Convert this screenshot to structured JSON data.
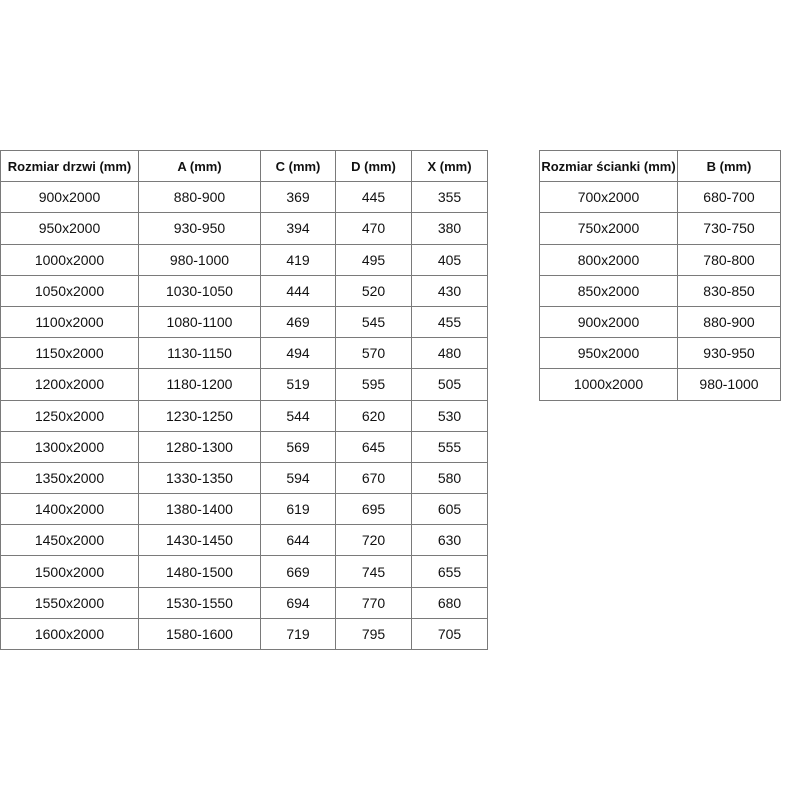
{
  "door_table": {
    "headers": [
      "Rozmiar drzwi (mm)",
      "A (mm)",
      "C (mm)",
      "D (mm)",
      "X (mm)"
    ],
    "rows": [
      [
        "900x2000",
        "880-900",
        "369",
        "445",
        "355"
      ],
      [
        "950x2000",
        "930-950",
        "394",
        "470",
        "380"
      ],
      [
        "1000x2000",
        "980-1000",
        "419",
        "495",
        "405"
      ],
      [
        "1050x2000",
        "1030-1050",
        "444",
        "520",
        "430"
      ],
      [
        "1100x2000",
        "1080-1100",
        "469",
        "545",
        "455"
      ],
      [
        "1150x2000",
        "1130-1150",
        "494",
        "570",
        "480"
      ],
      [
        "1200x2000",
        "1180-1200",
        "519",
        "595",
        "505"
      ],
      [
        "1250x2000",
        "1230-1250",
        "544",
        "620",
        "530"
      ],
      [
        "1300x2000",
        "1280-1300",
        "569",
        "645",
        "555"
      ],
      [
        "1350x2000",
        "1330-1350",
        "594",
        "670",
        "580"
      ],
      [
        "1400x2000",
        "1380-1400",
        "619",
        "695",
        "605"
      ],
      [
        "1450x2000",
        "1430-1450",
        "644",
        "720",
        "630"
      ],
      [
        "1500x2000",
        "1480-1500",
        "669",
        "745",
        "655"
      ],
      [
        "1550x2000",
        "1530-1550",
        "694",
        "770",
        "680"
      ],
      [
        "1600x2000",
        "1580-1600",
        "719",
        "795",
        "705"
      ]
    ]
  },
  "wall_table": {
    "headers": [
      "Rozmiar ścianki (mm)",
      "B (mm)"
    ],
    "rows": [
      [
        "700x2000",
        "680-700"
      ],
      [
        "750x2000",
        "730-750"
      ],
      [
        "800x2000",
        "780-800"
      ],
      [
        "850x2000",
        "830-850"
      ],
      [
        "900x2000",
        "880-900"
      ],
      [
        "950x2000",
        "930-950"
      ],
      [
        "1000x2000",
        "980-1000"
      ]
    ]
  }
}
